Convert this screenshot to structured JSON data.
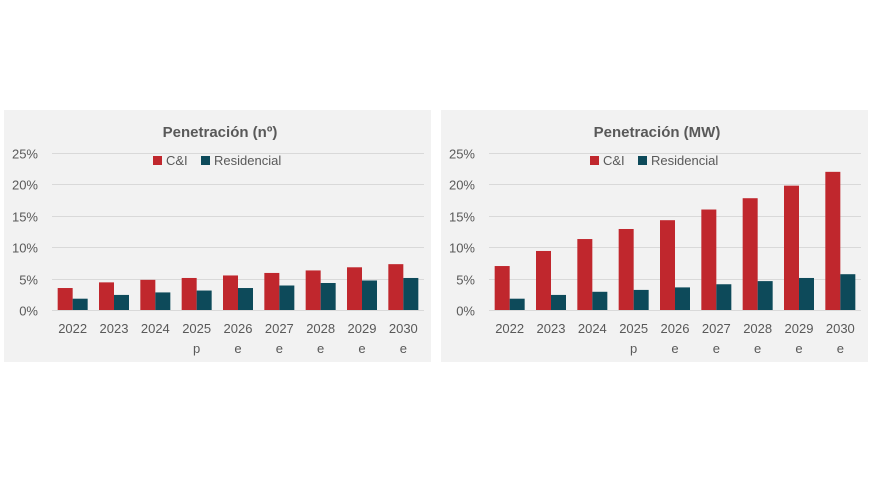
{
  "colors": {
    "cai": "#c0272d",
    "residencial": "#0d4a5a",
    "background": "#f2f2f2"
  },
  "chart_data": [
    {
      "type": "bar",
      "title": "Penetración (nº)",
      "categories": [
        [
          "2022"
        ],
        [
          "2023"
        ],
        [
          "2024"
        ],
        [
          "2025",
          "p"
        ],
        [
          "2026",
          "e"
        ],
        [
          "2027",
          "e"
        ],
        [
          "2028",
          "e"
        ],
        [
          "2029",
          "e"
        ],
        [
          "2030",
          "e"
        ]
      ],
      "series": [
        {
          "name": "C&I",
          "values": [
            3.5,
            4.4,
            4.8,
            5.1,
            5.5,
            5.9,
            6.3,
            6.8,
            7.3
          ]
        },
        {
          "name": "Residencial",
          "values": [
            1.8,
            2.4,
            2.8,
            3.1,
            3.5,
            3.9,
            4.3,
            4.7,
            5.1
          ]
        }
      ],
      "yticks": [
        "0%",
        "5%",
        "10%",
        "15%",
        "20%",
        "25%"
      ],
      "ylim": [
        0,
        25
      ],
      "grid": true,
      "legend": "top"
    },
    {
      "type": "bar",
      "title": "Penetración (MW)",
      "categories": [
        [
          "2022"
        ],
        [
          "2023"
        ],
        [
          "2024"
        ],
        [
          "2025",
          "p"
        ],
        [
          "2026",
          "e"
        ],
        [
          "2027",
          "e"
        ],
        [
          "2028",
          "e"
        ],
        [
          "2029",
          "e"
        ],
        [
          "2030",
          "e"
        ]
      ],
      "series": [
        {
          "name": "C&I",
          "values": [
            7.0,
            9.4,
            11.3,
            12.9,
            14.3,
            16.0,
            17.8,
            19.8,
            22.0
          ]
        },
        {
          "name": "Residencial",
          "values": [
            1.8,
            2.4,
            2.9,
            3.2,
            3.6,
            4.1,
            4.6,
            5.1,
            5.7
          ]
        }
      ],
      "yticks": [
        "0%",
        "5%",
        "10%",
        "15%",
        "20%",
        "25%"
      ],
      "ylim": [
        0,
        25
      ],
      "grid": true,
      "legend": "top"
    }
  ]
}
